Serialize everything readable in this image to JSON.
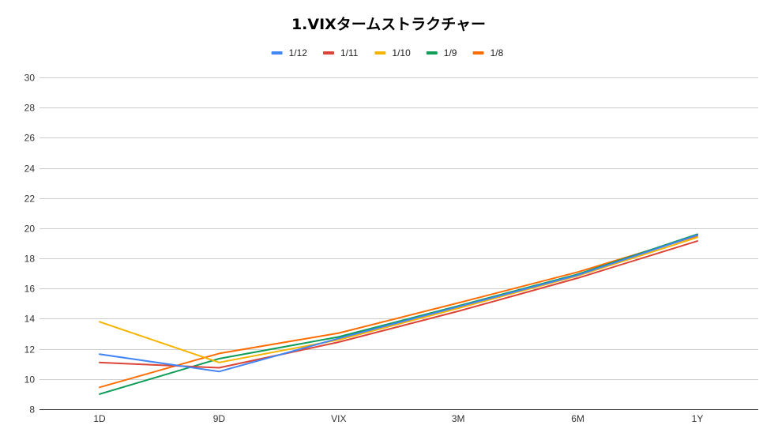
{
  "chart_data": {
    "type": "line",
    "title": "1.VIXタームストラクチャー",
    "xlabel": "",
    "ylabel": "",
    "categories": [
      "1D",
      "9D",
      "VIX",
      "3M",
      "6M",
      "1Y"
    ],
    "ylim": [
      8,
      30
    ],
    "yticks": [
      8,
      10,
      12,
      14,
      16,
      18,
      20,
      22,
      24,
      26,
      28,
      30
    ],
    "grid": true,
    "legend_position": "top",
    "series": [
      {
        "name": "1/12",
        "color": "#4285f4",
        "values": [
          11.65,
          10.5,
          12.7,
          14.8,
          16.9,
          19.55
        ]
      },
      {
        "name": "1/11",
        "color": "#db4437",
        "values": [
          11.1,
          10.75,
          12.45,
          14.5,
          16.7,
          19.15
        ]
      },
      {
        "name": "1/10",
        "color": "#f4b400",
        "values": [
          13.8,
          11.1,
          12.6,
          14.7,
          16.85,
          19.4
        ]
      },
      {
        "name": "1/9",
        "color": "#0f9d58",
        "values": [
          9.0,
          11.35,
          12.8,
          14.85,
          16.95,
          19.6
        ]
      },
      {
        "name": "1/8",
        "color": "#ff6d01",
        "values": [
          9.45,
          11.7,
          13.05,
          15.05,
          17.1,
          19.5
        ]
      }
    ]
  }
}
